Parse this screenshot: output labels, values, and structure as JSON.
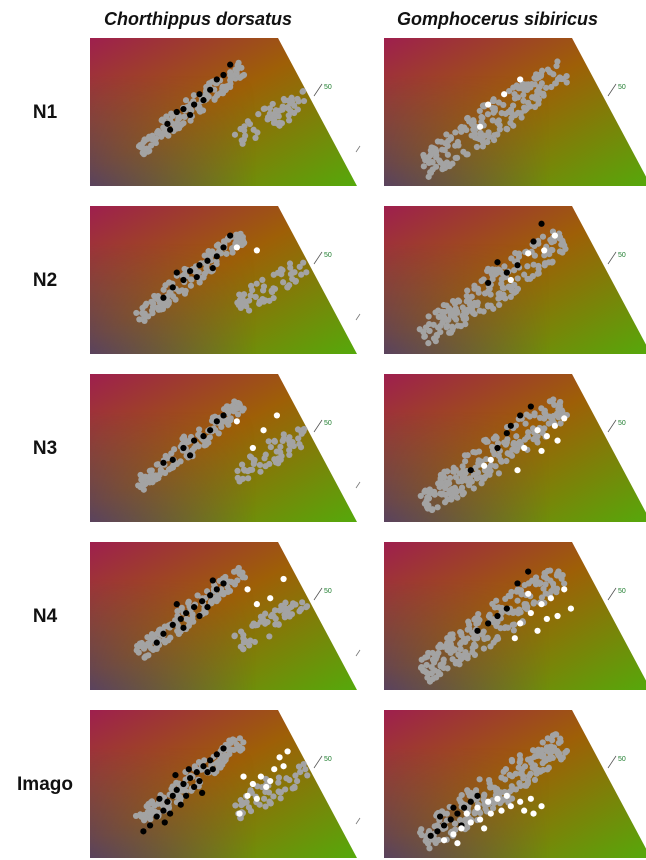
{
  "columns": [
    "Chorthippus dorsatus",
    "Gomphocerus sibiricus"
  ],
  "rows": [
    "N1",
    "N2",
    "N3",
    "N4",
    "Imago"
  ],
  "tick_label": "50",
  "colors": {
    "background_point": "#a3a3a3",
    "chorthippus_highlight": "#000000",
    "gomphocerus_black": "#000000",
    "gomphocerus_white": "#ffffff",
    "gradient_red": "#9e1f4e",
    "gradient_orange": "#9e5f07",
    "gradient_green": "#55a90b",
    "gradient_purple": "#4b3a73",
    "tick_text": "#1e7d2e"
  },
  "chart_data": {
    "type": "scatter",
    "title": "",
    "grid": false,
    "legend": "none",
    "note": "",
    "background_clouds": {
      "Chorthippus dorsatus": {
        "main": {
          "x": [
            -0.62,
            0.18
          ],
          "y": [
            0.12,
            0.89
          ]
        },
        "secondary": {
          "x": [
            0.15,
            0.62
          ],
          "y": [
            0.18,
            0.7
          ]
        }
      },
      "Gomphocerus sibiricus": {
        "main": {
          "x": [
            -0.72,
            0.42
          ],
          "y": [
            0.1,
            0.88
          ]
        }
      }
    },
    "panels": [
      {
        "species": "Chorthippus dorsatus",
        "stage": "N1",
        "black": [
          [
            -0.42,
            0.42
          ],
          [
            -0.35,
            0.5
          ],
          [
            -0.3,
            0.52
          ],
          [
            -0.22,
            0.55
          ],
          [
            -0.15,
            0.58
          ],
          [
            -0.18,
            0.62
          ],
          [
            -0.1,
            0.65
          ],
          [
            -0.05,
            0.72
          ],
          [
            0.0,
            0.75
          ],
          [
            -0.25,
            0.48
          ],
          [
            0.05,
            0.82
          ],
          [
            -0.4,
            0.38
          ]
        ],
        "white": []
      },
      {
        "species": "Gomphocerus sibiricus",
        "stage": "N1",
        "black": [],
        "white": [
          [
            -0.22,
            0.55
          ],
          [
            -0.1,
            0.62
          ],
          [
            -0.28,
            0.4
          ],
          [
            0.02,
            0.72
          ]
        ]
      },
      {
        "species": "Chorthippus dorsatus",
        "stage": "N2",
        "black": [
          [
            -0.45,
            0.38
          ],
          [
            -0.38,
            0.45
          ],
          [
            -0.3,
            0.5
          ],
          [
            -0.25,
            0.56
          ],
          [
            -0.18,
            0.6
          ],
          [
            -0.12,
            0.63
          ],
          [
            -0.05,
            0.66
          ],
          [
            0.0,
            0.72
          ],
          [
            -0.2,
            0.52
          ],
          [
            0.05,
            0.8
          ],
          [
            -0.35,
            0.55
          ],
          [
            -0.08,
            0.58
          ]
        ],
        "white": [
          [
            0.1,
            0.72
          ],
          [
            0.25,
            0.7
          ]
        ]
      },
      {
        "species": "Gomphocerus sibiricus",
        "stage": "N2",
        "black": [
          [
            -0.22,
            0.48
          ],
          [
            -0.08,
            0.55
          ],
          [
            0.0,
            0.6
          ],
          [
            0.12,
            0.76
          ],
          [
            0.18,
            0.88
          ],
          [
            -0.15,
            0.62
          ]
        ],
        "white": [
          [
            0.08,
            0.68
          ],
          [
            0.2,
            0.7
          ],
          [
            0.28,
            0.8
          ],
          [
            -0.05,
            0.5
          ]
        ]
      },
      {
        "species": "Chorthippus dorsatus",
        "stage": "N3",
        "black": [
          [
            -0.45,
            0.4
          ],
          [
            -0.38,
            0.42
          ],
          [
            -0.3,
            0.5
          ],
          [
            -0.22,
            0.55
          ],
          [
            -0.15,
            0.58
          ],
          [
            -0.1,
            0.62
          ],
          [
            -0.05,
            0.68
          ],
          [
            0.0,
            0.72
          ],
          [
            -0.25,
            0.45
          ]
        ],
        "white": [
          [
            0.1,
            0.68
          ],
          [
            0.22,
            0.5
          ],
          [
            0.3,
            0.62
          ],
          [
            0.4,
            0.72
          ]
        ]
      },
      {
        "species": "Gomphocerus sibiricus",
        "stage": "N3",
        "black": [
          [
            -0.35,
            0.35
          ],
          [
            -0.15,
            0.5
          ],
          [
            -0.05,
            0.65
          ],
          [
            0.02,
            0.72
          ],
          [
            0.1,
            0.78
          ],
          [
            -0.08,
            0.6
          ]
        ],
        "white": [
          [
            -0.2,
            0.42
          ],
          [
            0.05,
            0.5
          ],
          [
            0.15,
            0.62
          ],
          [
            0.22,
            0.58
          ],
          [
            0.28,
            0.65
          ],
          [
            0.35,
            0.7
          ],
          [
            0.3,
            0.55
          ],
          [
            0.0,
            0.35
          ],
          [
            0.18,
            0.48
          ],
          [
            -0.25,
            0.38
          ]
        ]
      },
      {
        "species": "Chorthippus dorsatus",
        "stage": "N4",
        "black": [
          [
            -0.5,
            0.32
          ],
          [
            -0.45,
            0.38
          ],
          [
            -0.38,
            0.44
          ],
          [
            -0.32,
            0.48
          ],
          [
            -0.28,
            0.52
          ],
          [
            -0.22,
            0.56
          ],
          [
            -0.16,
            0.6
          ],
          [
            -0.1,
            0.64
          ],
          [
            -0.05,
            0.68
          ],
          [
            0.0,
            0.72
          ],
          [
            -0.3,
            0.42
          ],
          [
            -0.18,
            0.5
          ],
          [
            -0.12,
            0.56
          ],
          [
            -0.08,
            0.74
          ],
          [
            -0.35,
            0.58
          ]
        ],
        "white": [
          [
            0.18,
            0.68
          ],
          [
            0.25,
            0.58
          ],
          [
            0.35,
            0.62
          ],
          [
            0.45,
            0.75
          ]
        ]
      },
      {
        "species": "Gomphocerus sibiricus",
        "stage": "N4",
        "black": [
          [
            -0.22,
            0.45
          ],
          [
            -0.15,
            0.5
          ],
          [
            -0.08,
            0.55
          ],
          [
            0.0,
            0.72
          ],
          [
            0.08,
            0.8
          ],
          [
            -0.3,
            0.4
          ]
        ],
        "white": [
          [
            0.02,
            0.45
          ],
          [
            0.1,
            0.52
          ],
          [
            0.18,
            0.58
          ],
          [
            0.25,
            0.62
          ],
          [
            0.3,
            0.5
          ],
          [
            0.35,
            0.68
          ],
          [
            0.4,
            0.55
          ],
          [
            0.15,
            0.4
          ],
          [
            0.22,
            0.48
          ],
          [
            -0.02,
            0.35
          ],
          [
            0.08,
            0.65
          ]
        ]
      },
      {
        "species": "Chorthippus dorsatus",
        "stage": "Imago",
        "black": [
          [
            -0.55,
            0.22
          ],
          [
            -0.5,
            0.28
          ],
          [
            -0.45,
            0.32
          ],
          [
            -0.42,
            0.38
          ],
          [
            -0.38,
            0.42
          ],
          [
            -0.35,
            0.46
          ],
          [
            -0.3,
            0.5
          ],
          [
            -0.25,
            0.54
          ],
          [
            -0.2,
            0.58
          ],
          [
            -0.15,
            0.62
          ],
          [
            -0.1,
            0.66
          ],
          [
            -0.05,
            0.7
          ],
          [
            0.0,
            0.74
          ],
          [
            -0.48,
            0.4
          ],
          [
            -0.4,
            0.3
          ],
          [
            -0.32,
            0.36
          ],
          [
            -0.28,
            0.42
          ],
          [
            -0.22,
            0.48
          ],
          [
            -0.18,
            0.52
          ],
          [
            -0.12,
            0.58
          ],
          [
            -0.08,
            0.6
          ],
          [
            -0.36,
            0.56
          ],
          [
            -0.26,
            0.6
          ],
          [
            -0.16,
            0.44
          ],
          [
            -0.6,
            0.18
          ],
          [
            -0.44,
            0.24
          ]
        ],
        "white": [
          [
            0.12,
            0.3
          ],
          [
            0.18,
            0.42
          ],
          [
            0.22,
            0.5
          ],
          [
            0.28,
            0.55
          ],
          [
            0.32,
            0.48
          ],
          [
            0.38,
            0.6
          ],
          [
            0.42,
            0.68
          ],
          [
            0.48,
            0.72
          ],
          [
            0.25,
            0.4
          ],
          [
            0.35,
            0.52
          ],
          [
            0.45,
            0.62
          ],
          [
            0.15,
            0.55
          ]
        ]
      },
      {
        "species": "Gomphocerus sibiricus",
        "stage": "Imago",
        "black": [
          [
            -0.65,
            0.15
          ],
          [
            -0.6,
            0.18
          ],
          [
            -0.55,
            0.22
          ],
          [
            -0.5,
            0.26
          ],
          [
            -0.45,
            0.3
          ],
          [
            -0.4,
            0.34
          ],
          [
            -0.35,
            0.38
          ],
          [
            -0.3,
            0.42
          ],
          [
            -0.58,
            0.28
          ],
          [
            -0.48,
            0.34
          ],
          [
            -0.42,
            0.22
          ]
        ],
        "white": [
          [
            -0.55,
            0.12
          ],
          [
            -0.48,
            0.16
          ],
          [
            -0.42,
            0.2
          ],
          [
            -0.35,
            0.24
          ],
          [
            -0.28,
            0.26
          ],
          [
            -0.2,
            0.3
          ],
          [
            -0.12,
            0.32
          ],
          [
            -0.05,
            0.35
          ],
          [
            0.02,
            0.38
          ],
          [
            0.1,
            0.4
          ],
          [
            0.18,
            0.35
          ],
          [
            -0.38,
            0.3
          ],
          [
            -0.3,
            0.34
          ],
          [
            -0.22,
            0.38
          ],
          [
            -0.15,
            0.4
          ],
          [
            -0.08,
            0.42
          ],
          [
            0.05,
            0.32
          ],
          [
            -0.25,
            0.2
          ],
          [
            -0.45,
            0.1
          ],
          [
            0.12,
            0.3
          ]
        ]
      }
    ]
  }
}
